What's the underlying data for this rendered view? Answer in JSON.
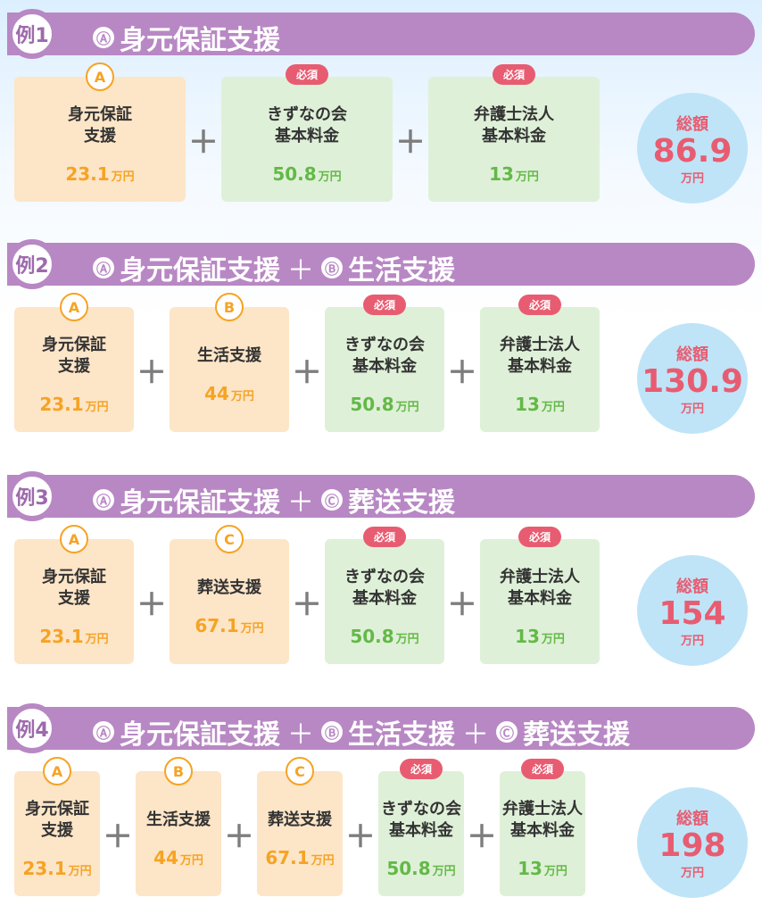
{
  "examples": [
    {
      "label": "例1",
      "title_parts": [
        "Ⓐ",
        "身元保証支援"
      ],
      "items": [
        {
          "letter": "A",
          "name": "身元保証\n支援",
          "price": "23.1",
          "unit": "万円",
          "required": false
        },
        {
          "letter": "",
          "name": "きずなの会\n基本料金",
          "price": "50.8",
          "unit": "万円",
          "required": true,
          "required_label": "必須"
        },
        {
          "letter": "",
          "name": "弁護士法人\n基本料金",
          "price": "13",
          "unit": "万円",
          "required": true,
          "required_label": "必須"
        }
      ],
      "total": {
        "label": "総額",
        "amount": "86.9",
        "unit": "万円"
      }
    },
    {
      "label": "例2",
      "title_parts": [
        "Ⓐ",
        "身元保証支援",
        "＋",
        "Ⓑ",
        "生活支援"
      ],
      "items": [
        {
          "letter": "A",
          "name": "身元保証\n支援",
          "price": "23.1",
          "unit": "万円",
          "required": false
        },
        {
          "letter": "B",
          "name": "生活支援",
          "price": "44",
          "unit": "万円",
          "required": false
        },
        {
          "letter": "",
          "name": "きずなの会\n基本料金",
          "price": "50.8",
          "unit": "万円",
          "required": true,
          "required_label": "必須"
        },
        {
          "letter": "",
          "name": "弁護士法人\n基本料金",
          "price": "13",
          "unit": "万円",
          "required": true,
          "required_label": "必須"
        }
      ],
      "total": {
        "label": "総額",
        "amount": "130.9",
        "unit": "万円"
      }
    },
    {
      "label": "例3",
      "title_parts": [
        "Ⓐ",
        "身元保証支援",
        "＋",
        "Ⓒ",
        "葬送支援"
      ],
      "items": [
        {
          "letter": "A",
          "name": "身元保証\n支援",
          "price": "23.1",
          "unit": "万円",
          "required": false
        },
        {
          "letter": "C",
          "name": "葬送支援",
          "price": "67.1",
          "unit": "万円",
          "required": false
        },
        {
          "letter": "",
          "name": "きずなの会\n基本料金",
          "price": "50.8",
          "unit": "万円",
          "required": true,
          "required_label": "必須"
        },
        {
          "letter": "",
          "name": "弁護士法人\n基本料金",
          "price": "13",
          "unit": "万円",
          "required": true,
          "required_label": "必須"
        }
      ],
      "total": {
        "label": "総額",
        "amount": "154",
        "unit": "万円"
      }
    },
    {
      "label": "例4",
      "title_parts": [
        "Ⓐ",
        "身元保証支援",
        "＋",
        "Ⓑ",
        "生活支援",
        "＋",
        "Ⓒ",
        "葬送支援"
      ],
      "items": [
        {
          "letter": "A",
          "name": "身元保証\n支援",
          "price": "23.1",
          "unit": "万円",
          "required": false
        },
        {
          "letter": "B",
          "name": "生活支援",
          "price": "44",
          "unit": "万円",
          "required": false
        },
        {
          "letter": "C",
          "name": "葬送支援",
          "price": "67.1",
          "unit": "万円",
          "required": false
        },
        {
          "letter": "",
          "name": "きずなの会\n基本料金",
          "price": "50.8",
          "unit": "万円",
          "required": true,
          "required_label": "必須"
        },
        {
          "letter": "",
          "name": "弁護士法人\n基本料金",
          "price": "13",
          "unit": "万円",
          "required": true,
          "required_label": "必須"
        }
      ],
      "total": {
        "label": "総額",
        "amount": "198",
        "unit": "万円"
      }
    }
  ],
  "plus_symbol": "＋",
  "colors": {
    "header": "#b888c4",
    "orange_card": "#fde5c7",
    "orange_text": "#f6a323",
    "green_card": "#dff0d8",
    "green_text": "#63b947",
    "required_tag": "#e85c71",
    "total_circle": "#bfe4f7",
    "total_text": "#e85c71"
  }
}
